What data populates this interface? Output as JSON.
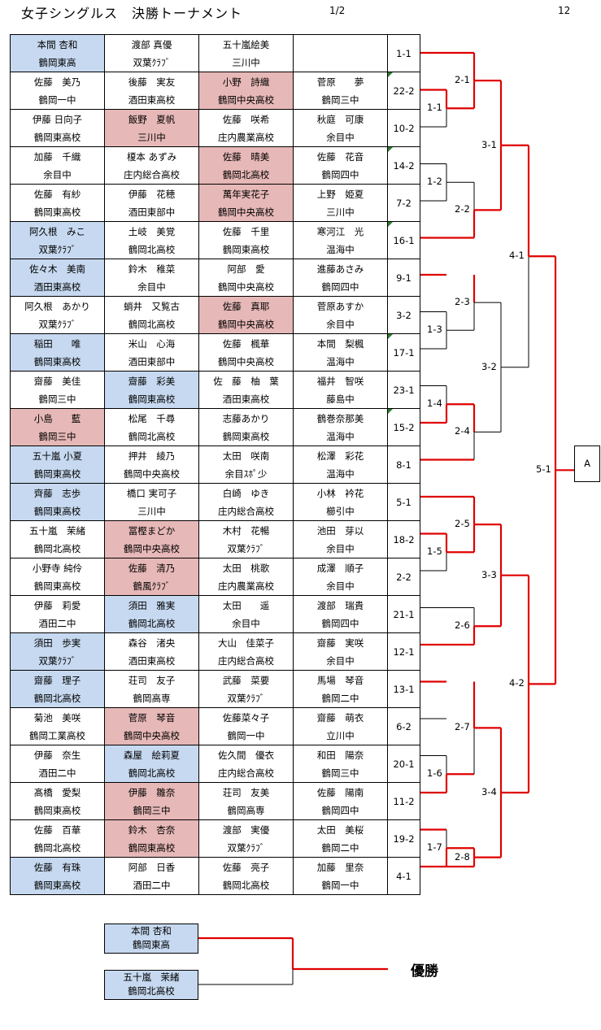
{
  "header": {
    "title": "女子シングルス　決勝トーナメント",
    "page_fraction": "1/2",
    "page_number": "12"
  },
  "rows": [
    {
      "code": "1-1",
      "mark": false,
      "cells": [
        {
          "name": "本間 杏和",
          "school": "鶴岡東高",
          "color": "blue"
        },
        {
          "name": "渡部 真優",
          "school": "双葉ｸﾗﾌﾞ",
          "color": ""
        },
        {
          "name": "五十嵐絵美",
          "school": "三川中",
          "color": ""
        },
        {
          "name": "",
          "school": "",
          "color": ""
        }
      ]
    },
    {
      "code": "22-2",
      "mark": true,
      "cells": [
        {
          "name": "佐藤　美乃",
          "school": "鶴岡一中",
          "color": ""
        },
        {
          "name": "後藤　実友",
          "school": "酒田東高校",
          "color": ""
        },
        {
          "name": "小野　詩織",
          "school": "鶴岡中央高校",
          "color": "pink"
        },
        {
          "name": "菅原　　夢",
          "school": "鶴岡三中",
          "color": ""
        }
      ]
    },
    {
      "code": "10-2",
      "mark": false,
      "cells": [
        {
          "name": "伊藤 日向子",
          "school": "鶴岡東高校",
          "color": ""
        },
        {
          "name": "飯野　夏帆",
          "school": "三川中",
          "color": "pink"
        },
        {
          "name": "佐藤　咲希",
          "school": "庄内農業高校",
          "color": ""
        },
        {
          "name": "秋庭　可康",
          "school": "余目中",
          "color": ""
        }
      ]
    },
    {
      "code": "14-2",
      "mark": true,
      "cells": [
        {
          "name": "加藤　千織",
          "school": "余目中",
          "color": ""
        },
        {
          "name": "榎本 あずみ",
          "school": "庄内総合高校",
          "color": ""
        },
        {
          "name": "佐藤　晴美",
          "school": "鶴岡北高校",
          "color": "pink"
        },
        {
          "name": "佐藤　花音",
          "school": "鶴岡四中",
          "color": ""
        }
      ]
    },
    {
      "code": "7-2",
      "mark": false,
      "cells": [
        {
          "name": "佐藤　有紗",
          "school": "鶴岡東高校",
          "color": ""
        },
        {
          "name": "伊藤　花穂",
          "school": "酒田東部中",
          "color": ""
        },
        {
          "name": "萬年実花子",
          "school": "鶴岡中央高校",
          "color": "pink"
        },
        {
          "name": "上野　姫夏",
          "school": "三川中",
          "color": ""
        }
      ]
    },
    {
      "code": "16-1",
      "mark": true,
      "cells": [
        {
          "name": "阿久根　みこ",
          "school": "双葉ｸﾗﾌﾞ",
          "color": "blue"
        },
        {
          "name": "土岐　美覚",
          "school": "鶴岡北高校",
          "color": ""
        },
        {
          "name": "佐藤　千里",
          "school": "鶴岡東高校",
          "color": ""
        },
        {
          "name": "寒河江　光",
          "school": "温海中",
          "color": ""
        }
      ]
    },
    {
      "code": "9-1",
      "mark": false,
      "cells": [
        {
          "name": "佐々木　美南",
          "school": "酒田東高校",
          "color": "blue"
        },
        {
          "name": "鈴木　稚菜",
          "school": "余目中",
          "color": ""
        },
        {
          "name": "阿部　愛",
          "school": "鶴岡中央高校",
          "color": ""
        },
        {
          "name": "進藤あさみ",
          "school": "鶴岡四中",
          "color": ""
        }
      ]
    },
    {
      "code": "3-2",
      "mark": false,
      "cells": [
        {
          "name": "阿久根　あかり",
          "school": "双葉ｸﾗﾌﾞ",
          "color": ""
        },
        {
          "name": "蛸井　又覧古",
          "school": "鶴岡北高校",
          "color": ""
        },
        {
          "name": "佐藤　真耶",
          "school": "鶴岡中央高校",
          "color": "pink"
        },
        {
          "name": "菅原あすか",
          "school": "余目中",
          "color": ""
        }
      ]
    },
    {
      "code": "17-1",
      "mark": true,
      "cells": [
        {
          "name": "稲田　　唯",
          "school": "鶴岡東高校",
          "color": "blue"
        },
        {
          "name": "米山　心海",
          "school": "酒田東部中",
          "color": ""
        },
        {
          "name": "佐藤　楓華",
          "school": "鶴岡中央高校",
          "color": ""
        },
        {
          "name": "本間　梨楓",
          "school": "温海中",
          "color": ""
        }
      ]
    },
    {
      "code": "23-1",
      "mark": false,
      "cells": [
        {
          "name": "齋藤　美佳",
          "school": "鶴岡三中",
          "color": ""
        },
        {
          "name": "齋藤　彩美",
          "school": "鶴岡東高校",
          "color": "blue"
        },
        {
          "name": "佐　藤　柚　葉",
          "school": "酒田東高校",
          "color": ""
        },
        {
          "name": "福井　智咲",
          "school": "藤島中",
          "color": ""
        }
      ]
    },
    {
      "code": "15-2",
      "mark": true,
      "cells": [
        {
          "name": "小島　　藍",
          "school": "鶴岡三中",
          "color": "pink"
        },
        {
          "name": "松尾　千尋",
          "school": "鶴岡北高校",
          "color": ""
        },
        {
          "name": "志藤あかり",
          "school": "鶴岡東高校",
          "color": ""
        },
        {
          "name": "鶴巻奈那美",
          "school": "温海中",
          "color": ""
        }
      ]
    },
    {
      "code": "8-1",
      "mark": false,
      "cells": [
        {
          "name": "五十嵐 小夏",
          "school": "鶴岡東高校",
          "color": "blue"
        },
        {
          "name": "押井　綾乃",
          "school": "鶴岡中央高校",
          "color": ""
        },
        {
          "name": "太田　咲南",
          "school": "余目ｽﾎﾟ少",
          "color": ""
        },
        {
          "name": "松澤　彩花",
          "school": "温海中",
          "color": ""
        }
      ]
    },
    {
      "code": "5-1",
      "mark": false,
      "cells": [
        {
          "name": "齊藤　志歩",
          "school": "鶴岡東高校",
          "color": "blue"
        },
        {
          "name": "橋口 実可子",
          "school": "三川中",
          "color": ""
        },
        {
          "name": "白崎　ゆき",
          "school": "庄内総合高校",
          "color": ""
        },
        {
          "name": "小林　衿花",
          "school": "櫛引中",
          "color": ""
        }
      ]
    },
    {
      "code": "18-2",
      "mark": false,
      "cells": [
        {
          "name": "五十嵐　茉緒",
          "school": "鶴岡北高校",
          "color": ""
        },
        {
          "name": "冨樫まどか",
          "school": "鶴岡中央高校",
          "color": "pink"
        },
        {
          "name": "木村　花暢",
          "school": "双葉ｸﾗﾌﾞ",
          "color": ""
        },
        {
          "name": "池田　芽以",
          "school": "余目中",
          "color": ""
        }
      ]
    },
    {
      "code": "2-2",
      "mark": false,
      "cells": [
        {
          "name": "小野寺 純伶",
          "school": "鶴岡東高校",
          "color": ""
        },
        {
          "name": "佐藤　清乃",
          "school": "鶴風ｸﾗﾌﾞ",
          "color": "pink"
        },
        {
          "name": "太田　桃歌",
          "school": "庄内農業高校",
          "color": ""
        },
        {
          "name": "成澤　順子",
          "school": "余目中",
          "color": ""
        }
      ]
    },
    {
      "code": "21-1",
      "mark": false,
      "cells": [
        {
          "name": "伊藤　莉愛",
          "school": "酒田二中",
          "color": ""
        },
        {
          "name": "須田　雅実",
          "school": "鶴岡北高校",
          "color": "blue"
        },
        {
          "name": "太田　　遥",
          "school": "余目中",
          "color": ""
        },
        {
          "name": "渡部　瑞貴",
          "school": "鶴岡四中",
          "color": ""
        }
      ]
    },
    {
      "code": "12-1",
      "mark": false,
      "cells": [
        {
          "name": "須田　歩実",
          "school": "双葉ｸﾗﾌﾞ",
          "color": "blue"
        },
        {
          "name": "森谷　渚央",
          "school": "酒田東高校",
          "color": ""
        },
        {
          "name": "大山　佳菜子",
          "school": "庄内総合高校",
          "color": ""
        },
        {
          "name": "齋藤　実咲",
          "school": "余目中",
          "color": ""
        }
      ]
    },
    {
      "code": "13-1",
      "mark": false,
      "cells": [
        {
          "name": "齋藤　理子",
          "school": "鶴岡北高校",
          "color": "blue"
        },
        {
          "name": "荘司　友子",
          "school": "鶴岡高専",
          "color": ""
        },
        {
          "name": "武藤　菜要",
          "school": "双葉ｸﾗﾌﾞ",
          "color": ""
        },
        {
          "name": "馬場　琴音",
          "school": "鶴岡二中",
          "color": ""
        }
      ]
    },
    {
      "code": "6-2",
      "mark": false,
      "cells": [
        {
          "name": "菊池　美咲",
          "school": "鶴岡工業高校",
          "color": ""
        },
        {
          "name": "菅原　琴音",
          "school": "鶴岡中央高校",
          "color": "pink"
        },
        {
          "name": "佐藤菜々子",
          "school": "鶴岡一中",
          "color": ""
        },
        {
          "name": "齋藤　萌衣",
          "school": "立川中",
          "color": ""
        }
      ]
    },
    {
      "code": "20-1",
      "mark": false,
      "cells": [
        {
          "name": "伊藤　奈生",
          "school": "酒田二中",
          "color": ""
        },
        {
          "name": "森屋　絵莉夏",
          "school": "鶴岡北高校",
          "color": "blue"
        },
        {
          "name": "佐久間　優衣",
          "school": "庄内総合高校",
          "color": ""
        },
        {
          "name": "和田　陽奈",
          "school": "鶴岡三中",
          "color": ""
        }
      ]
    },
    {
      "code": "11-2",
      "mark": false,
      "cells": [
        {
          "name": "髙橋　愛梨",
          "school": "鶴岡東高校",
          "color": ""
        },
        {
          "name": "伊藤　雛奈",
          "school": "鶴岡三中",
          "color": "pink"
        },
        {
          "name": "荘司　友美",
          "school": "鶴岡高専",
          "color": ""
        },
        {
          "name": "佐藤　陽南",
          "school": "鶴岡四中",
          "color": ""
        }
      ]
    },
    {
      "code": "19-2",
      "mark": false,
      "cells": [
        {
          "name": "佐藤　百華",
          "school": "鶴岡北高校",
          "color": ""
        },
        {
          "name": "鈴木　杏奈",
          "school": "鶴岡東高校",
          "color": "pink"
        },
        {
          "name": "渡部　実優",
          "school": "双葉ｸﾗﾌﾞ",
          "color": ""
        },
        {
          "name": "太田　美桜",
          "school": "鶴岡二中",
          "color": ""
        }
      ]
    },
    {
      "code": "4-1",
      "mark": false,
      "cells": [
        {
          "name": "佐藤　有珠",
          "school": "鶴岡東高校",
          "color": "blue"
        },
        {
          "name": "阿部　日香",
          "school": "酒田二中",
          "color": ""
        },
        {
          "name": "佐藤　亮子",
          "school": "鶴岡北高校",
          "color": ""
        },
        {
          "name": "加藤　里奈",
          "school": "鶴岡一中",
          "color": ""
        }
      ]
    }
  ],
  "matches": [
    "1-1",
    "1-3",
    "1-4",
    "1-5",
    "1-6",
    "1-7",
    "2-1",
    "2-2",
    "2-3",
    "2-4",
    "2-5",
    "2-6",
    "2-7",
    "2-8",
    "3-1",
    "3-2",
    "3-3",
    "3-4",
    "4-1",
    "4-2",
    "5-1"
  ],
  "final_slot": "A",
  "final": {
    "player1": {
      "name": "本間 杏和",
      "school": "鶴岡東高"
    },
    "player2": {
      "name": "五十嵐　茉緒",
      "school": "鶴岡北高校"
    },
    "champion_label": "優勝"
  },
  "colors": {
    "winner_line": "#e00000",
    "base_line": "#000000",
    "blue_fill": "#c6d9f0",
    "pink_fill": "#e6b8b7"
  }
}
